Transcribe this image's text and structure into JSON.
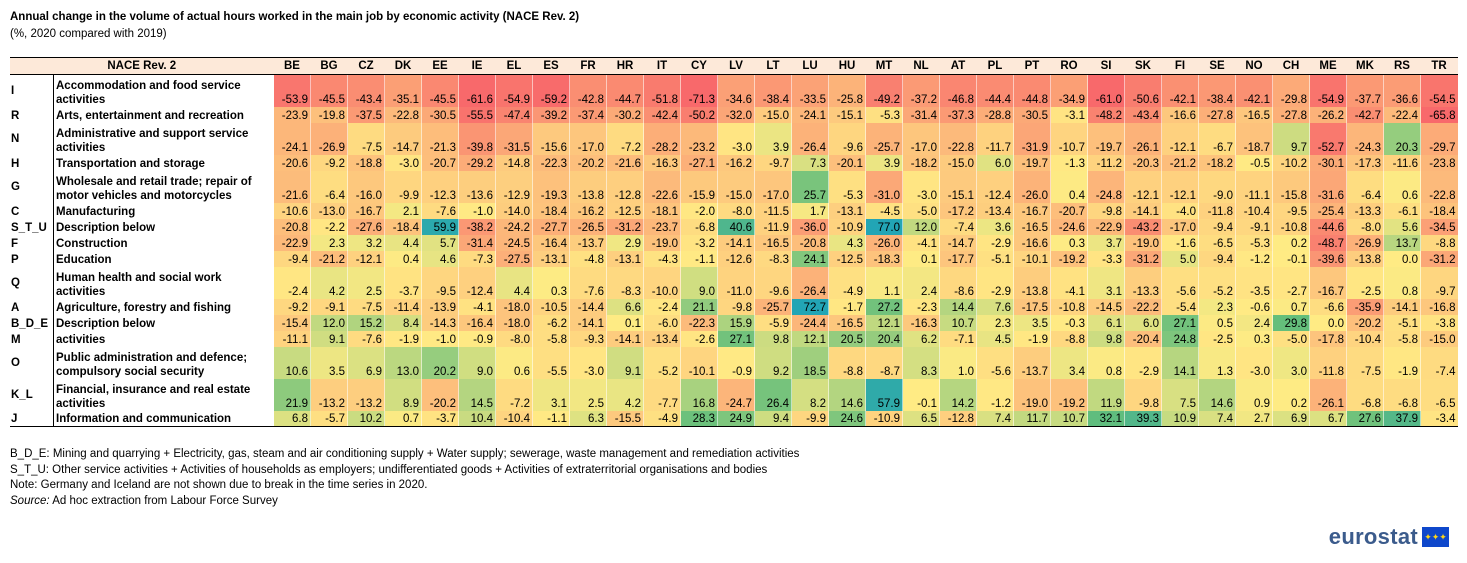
{
  "header": {
    "title": "Annual change in the volume of actual hours worked in the main job by economic activity (NACE Rev. 2)",
    "subtitle": "(%, 2020 compared with 2019)"
  },
  "colors": {
    "scale_low": "#f8696b",
    "scale_mid": "#ffeb84",
    "scale_high": "#63be7b",
    "strong_positive": "#22a5b5",
    "header_fill": "#fde9d9"
  },
  "chart_data": {
    "type": "heatmap",
    "row_header": "NACE Rev. 2",
    "columns": [
      "BE",
      "BG",
      "CZ",
      "DK",
      "EE",
      "IE",
      "EL",
      "ES",
      "FR",
      "HR",
      "IT",
      "CY",
      "LV",
      "LT",
      "LU",
      "HU",
      "MT",
      "NL",
      "AT",
      "PL",
      "PT",
      "RO",
      "SI",
      "SK",
      "FI",
      "SE",
      "NO",
      "CH",
      "ME",
      "MK",
      "RS",
      "TR"
    ],
    "rows": [
      {
        "code": "I",
        "label": "Accommodation and food service activities",
        "values": [
          -53.9,
          -45.5,
          -43.4,
          -35.1,
          -45.5,
          -61.6,
          -54.9,
          -59.2,
          -42.8,
          -44.7,
          -51.8,
          -71.3,
          -34.6,
          -38.4,
          -33.5,
          -25.8,
          -49.2,
          -37.2,
          -46.8,
          -44.4,
          -44.8,
          -34.9,
          -61.0,
          -50.6,
          -42.1,
          -38.4,
          -42.1,
          -29.8,
          -54.9,
          -37.7,
          -36.6,
          -54.5
        ]
      },
      {
        "code": "R",
        "label": "Arts, entertainment and recreation",
        "values": [
          -23.9,
          -19.8,
          -37.5,
          -22.8,
          -30.5,
          -55.5,
          -47.4,
          -39.2,
          -37.4,
          -30.2,
          -42.4,
          -50.2,
          -32.0,
          -15.0,
          -24.1,
          -15.1,
          -5.3,
          -31.4,
          -37.3,
          -28.8,
          -30.5,
          -3.1,
          -48.2,
          -43.4,
          -16.6,
          -27.8,
          -16.5,
          -27.8,
          -26.2,
          -42.7,
          -22.4,
          -65.8
        ]
      },
      {
        "code": "N",
        "label": "Administrative and support service activities",
        "values": [
          -24.1,
          -26.9,
          -7.5,
          -14.7,
          -21.3,
          -39.8,
          -31.5,
          -15.6,
          -17.0,
          -7.2,
          -28.2,
          -23.2,
          -3.0,
          3.9,
          -26.4,
          -9.6,
          -25.7,
          -17.0,
          -22.8,
          -11.7,
          -31.9,
          -10.7,
          -19.7,
          -26.1,
          -12.1,
          -6.7,
          -18.7,
          9.7,
          -52.7,
          -24.3,
          20.3,
          -29.7
        ]
      },
      {
        "code": "H",
        "label": "Transportation and storage",
        "values": [
          -20.6,
          -9.2,
          -18.8,
          -3.0,
          -20.7,
          -29.2,
          -14.8,
          -22.3,
          -20.2,
          -21.6,
          -16.3,
          -27.1,
          -16.2,
          -9.7,
          7.3,
          -20.1,
          3.9,
          -18.2,
          -15.0,
          6.0,
          -19.7,
          -1.3,
          -11.2,
          -20.3,
          -21.2,
          -18.2,
          -0.5,
          -10.2,
          -30.1,
          -17.3,
          -11.6,
          -23.8
        ]
      },
      {
        "code": "G",
        "label": "Wholesale and retail trade; repair of motor vehicles and motorcycles",
        "values": [
          -21.6,
          -6.4,
          -16.0,
          -9.9,
          -12.3,
          -13.6,
          -12.9,
          -19.3,
          -13.8,
          -12.8,
          -22.6,
          -15.9,
          -15.0,
          -17.0,
          25.7,
          -5.3,
          -31.0,
          -3.0,
          -15.1,
          -12.4,
          -26.0,
          0.4,
          -24.8,
          -12.1,
          -12.1,
          -9.0,
          -11.1,
          -15.8,
          -31.6,
          -6.4,
          0.6,
          -22.8
        ]
      },
      {
        "code": "C",
        "label": "Manufacturing",
        "values": [
          -10.6,
          -13.0,
          -16.7,
          2.1,
          -7.6,
          -1.0,
          -14.0,
          -18.4,
          -16.2,
          -12.5,
          -18.1,
          -2.0,
          -8.0,
          -11.5,
          1.7,
          -13.1,
          -4.5,
          -5.0,
          -17.2,
          -13.4,
          -16.7,
          -20.7,
          -9.8,
          -14.1,
          -4.0,
          -11.8,
          -10.4,
          -9.5,
          -25.4,
          -13.3,
          -6.1,
          -18.4
        ]
      },
      {
        "code": "S_T_U",
        "label": "Description below",
        "values": [
          -20.8,
          -2.2,
          -27.6,
          -18.4,
          59.9,
          -38.2,
          -24.2,
          -27.7,
          -26.5,
          -31.2,
          -23.7,
          -6.8,
          40.6,
          -11.9,
          -36.0,
          -10.9,
          77.0,
          12.0,
          -7.4,
          3.6,
          -16.5,
          -24.6,
          -22.9,
          -43.2,
          -17.0,
          -9.4,
          -9.1,
          -10.8,
          -44.6,
          -8.0,
          5.6,
          -34.5
        ]
      },
      {
        "code": "F",
        "label": "Construction",
        "values": [
          -22.9,
          2.3,
          3.2,
          4.4,
          5.7,
          -31.4,
          -24.5,
          -16.4,
          -13.7,
          2.9,
          -19.0,
          -3.2,
          -14.1,
          -16.5,
          -20.8,
          4.3,
          -26.0,
          -4.1,
          -14.7,
          -2.9,
          -16.6,
          0.3,
          3.7,
          -19.0,
          -1.6,
          -6.5,
          -5.3,
          0.2,
          -48.7,
          -26.9,
          13.7,
          -8.8
        ]
      },
      {
        "code": "P",
        "label": "Education",
        "values": [
          -9.4,
          -21.2,
          -12.1,
          0.4,
          4.6,
          -7.3,
          -27.5,
          -13.1,
          -4.8,
          -13.1,
          -4.3,
          -1.1,
          -12.6,
          -8.3,
          24.1,
          -12.5,
          -18.3,
          0.1,
          -17.7,
          -5.1,
          -10.1,
          -19.2,
          -3.3,
          -31.2,
          5.0,
          -9.4,
          -1.2,
          -0.1,
          -39.6,
          -13.8,
          0.0,
          -31.2
        ]
      },
      {
        "code": "Q",
        "label": "Human health and social work activities",
        "values": [
          -2.4,
          4.2,
          2.5,
          -3.7,
          -9.5,
          -12.4,
          4.4,
          0.3,
          -7.6,
          -8.3,
          -10.0,
          9.0,
          -11.0,
          -9.6,
          -26.4,
          -4.9,
          1.1,
          2.4,
          -8.6,
          -2.9,
          -13.8,
          -4.1,
          3.1,
          -13.3,
          -5.6,
          -5.2,
          -3.5,
          -2.7,
          -16.7,
          -2.5,
          0.8,
          -9.7
        ]
      },
      {
        "code": "A",
        "label": "Agriculture, forestry and fishing",
        "values": [
          -9.2,
          -9.1,
          -7.5,
          -11.4,
          -13.9,
          -4.1,
          -18.0,
          -10.5,
          -14.4,
          6.6,
          -2.4,
          21.1,
          -9.8,
          -25.7,
          72.7,
          -1.7,
          27.2,
          -2.3,
          14.4,
          7.6,
          -17.5,
          -10.8,
          -14.5,
          -22.2,
          -5.4,
          2.3,
          -0.6,
          0.7,
          -6.6,
          -35.9,
          -14.1,
          -16.8
        ]
      },
      {
        "code": "B_D_E",
        "label": "Description below",
        "values": [
          -15.4,
          12.0,
          15.2,
          8.4,
          -14.3,
          -16.4,
          -18.0,
          -6.2,
          -14.1,
          0.1,
          -6.0,
          -22.3,
          15.9,
          -5.9,
          -24.4,
          -16.5,
          12.1,
          -16.3,
          10.7,
          2.3,
          3.5,
          -0.3,
          6.1,
          6.0,
          27.1,
          0.5,
          2.4,
          29.8,
          0.0,
          -20.2,
          -5.1,
          -3.8
        ]
      },
      {
        "code": "M",
        "label": "activities",
        "values": [
          -11.1,
          9.1,
          -7.6,
          -1.9,
          -1.0,
          -0.9,
          -8.0,
          -5.8,
          -9.3,
          -14.1,
          -13.4,
          -2.6,
          27.1,
          9.8,
          12.1,
          20.5,
          20.4,
          6.2,
          -7.1,
          4.5,
          -1.9,
          -8.8,
          9.8,
          -20.4,
          24.8,
          -2.5,
          0.3,
          -5.0,
          -17.8,
          -10.4,
          -5.8,
          -15.0
        ]
      },
      {
        "code": "O",
        "label": "Public administration and defence; compulsory social security",
        "values": [
          10.6,
          3.5,
          6.9,
          13.0,
          20.2,
          9.0,
          0.6,
          -5.5,
          -3.0,
          9.1,
          -5.2,
          -10.1,
          -0.9,
          9.2,
          18.5,
          -8.8,
          -8.7,
          8.3,
          1.0,
          -5.6,
          -13.7,
          3.4,
          0.8,
          -2.9,
          14.1,
          1.3,
          -3.0,
          3.0,
          -11.8,
          -7.5,
          -1.9,
          -7.4
        ]
      },
      {
        "code": "K_L",
        "label": "Financial, insurance and real estate activities",
        "values": [
          21.9,
          -13.2,
          -13.2,
          8.9,
          -20.2,
          14.5,
          -7.2,
          3.1,
          2.5,
          4.2,
          -7.7,
          16.8,
          -24.7,
          26.4,
          8.2,
          14.6,
          57.9,
          -0.1,
          14.2,
          -1.2,
          -19.0,
          -19.2,
          11.9,
          -9.8,
          7.5,
          14.6,
          0.9,
          0.2,
          -26.1,
          -6.8,
          -6.8,
          -6.5
        ]
      },
      {
        "code": "J",
        "label": "Information and communication",
        "values": [
          6.8,
          -5.7,
          10.2,
          0.7,
          -3.7,
          10.4,
          -10.4,
          -1.1,
          6.3,
          -15.5,
          -4.9,
          28.3,
          24.9,
          9.4,
          -9.9,
          24.6,
          -10.9,
          6.5,
          -12.8,
          7.4,
          11.7,
          10.7,
          32.1,
          39.3,
          10.9,
          7.4,
          2.7,
          6.9,
          6.7,
          27.6,
          37.9,
          -3.4
        ]
      }
    ]
  },
  "notes": {
    "bde": "B_D_E: Mining and quarrying + Electricity, gas, steam and air conditioning supply + Water supply; sewerage, waste management and remediation activities",
    "stu": "S_T_U: Other service activities + Activities of households as employers; undifferentiated goods + Activities of extraterritorial organisations and bodies",
    "note": "Note: Germany and Iceland are not shown due to break in the time series in 2020.",
    "source_label": "Source:",
    "source_text": "Ad hoc extraction from Labour Force Survey"
  },
  "logo": {
    "text": "eurostat",
    "icon": "eu-flag-icon"
  }
}
